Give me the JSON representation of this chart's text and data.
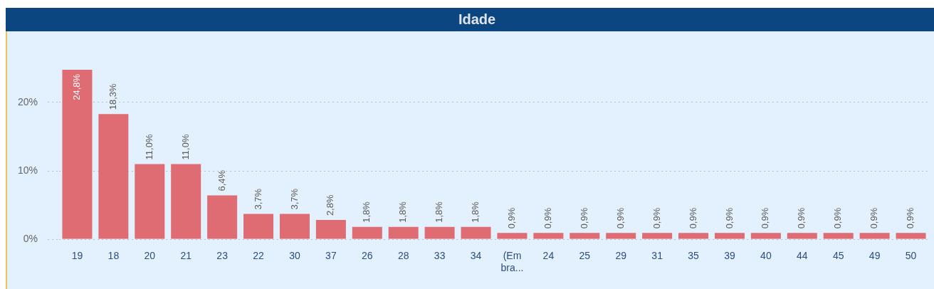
{
  "chart_data": {
    "type": "bar",
    "title": "Idade",
    "categories": [
      "19",
      "18",
      "20",
      "21",
      "23",
      "22",
      "30",
      "37",
      "26",
      "28",
      "33",
      "34",
      "(Em bra...",
      "24",
      "25",
      "29",
      "31",
      "35",
      "39",
      "40",
      "44",
      "45",
      "49",
      "50"
    ],
    "values": [
      24.8,
      18.3,
      11.0,
      11.0,
      6.4,
      3.7,
      3.7,
      2.8,
      1.8,
      1.8,
      1.8,
      1.8,
      0.9,
      0.9,
      0.9,
      0.9,
      0.9,
      0.9,
      0.9,
      0.9,
      0.9,
      0.9,
      0.9,
      0.9
    ],
    "value_labels": [
      "24,8%",
      "18,3%",
      "11,0%",
      "11,0%",
      "6,4%",
      "3,7%",
      "3,7%",
      "2,8%",
      "1,8%",
      "1,8%",
      "1,8%",
      "1,8%",
      "0,9%",
      "0,9%",
      "0,9%",
      "0,9%",
      "0,9%",
      "0,9%",
      "0,9%",
      "0,9%",
      "0,9%",
      "0,9%",
      "0,9%",
      "0,9%"
    ],
    "color": "#df6b73",
    "ylim": [
      0,
      25
    ],
    "yticks": [
      {
        "value": 0,
        "label": "0%"
      },
      {
        "value": 10,
        "label": "10%"
      },
      {
        "value": 20,
        "label": "20%"
      }
    ],
    "grid": "y"
  }
}
